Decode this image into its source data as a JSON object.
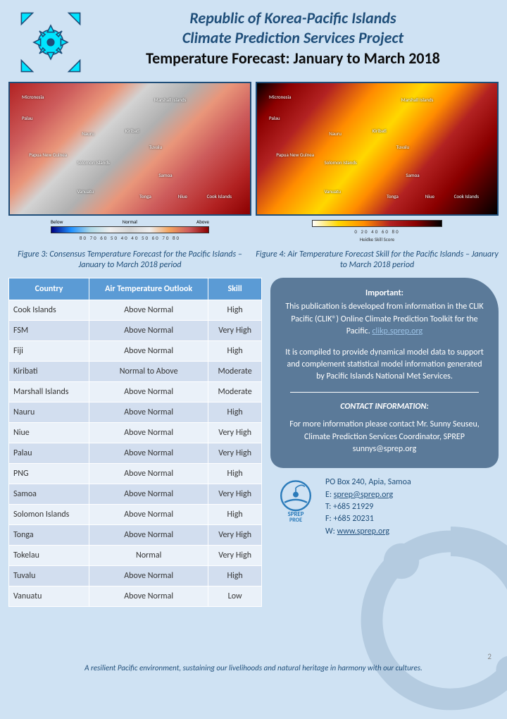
{
  "colors": {
    "page_bg": "#cfe2f3",
    "accent": "#1f4e79",
    "table_header_bg": "#5b9bd5",
    "table_row_odd": "#eaf1f9",
    "table_row_even": "#d2deef",
    "info_box_bg": "#5b7a99",
    "link": "#9cc3e6",
    "logo_cyan": "#00e5ff"
  },
  "header": {
    "title_line1": "Republic of Korea-Pacific Islands",
    "title_line2": "Climate Prediction Services Project",
    "subtitle": "Temperature Forecast: January to March 2018"
  },
  "maps": {
    "left": {
      "type": "heatmap",
      "description": "Consensus temperature forecast probability map",
      "labels": [
        "Micronesia",
        "Palau",
        "Marshall Islands",
        "Kiribati",
        "Nauru",
        "Papua New Guinea",
        "Solomon Islands",
        "Tuvalu",
        "Vanuatu",
        "Samoa",
        "Tonga",
        "Niue",
        "Cook Islands"
      ],
      "legend": {
        "title_below": "Below",
        "title_normal": "Normal",
        "title_above": "Above",
        "ticks": "80 70 60 50 40   40 50 60 70 80",
        "gradient": [
          "#000080",
          "#1e90ff",
          "#add8e6",
          "#eeeeee",
          "#d3d3d3",
          "#eeeeee",
          "#f4a460",
          "#cd5c5c",
          "#8b0000"
        ]
      }
    },
    "right": {
      "type": "heatmap",
      "description": "Air temperature forecast Heidke skill score map",
      "labels": [
        "Micronesia",
        "Palau",
        "Marshall Islands",
        "Kiribati",
        "Nauru",
        "Papua New Guinea",
        "Solomon Islands",
        "Tuvalu",
        "Vanuatu",
        "Samoa",
        "Tonga",
        "Niue",
        "Cook Islands"
      ],
      "legend": {
        "title": "Heidke Skill Score",
        "ticks": "0  20  40  60  80",
        "gradient": [
          "#ffffff",
          "#ffd700",
          "#ff8c00",
          "#b22222",
          "#8b0000",
          "#000000"
        ]
      }
    }
  },
  "captions": {
    "left": "Figure 3: Consensus Temperature Forecast for the Pacific Islands – January to March 2018 period",
    "right": "Figure 4: Air Temperature Forecast Skill for the Pacific Islands – January to March 2018 period"
  },
  "table": {
    "columns": [
      "Country",
      "Air Temperature Outlook",
      "Skill"
    ],
    "rows": [
      [
        "Cook Islands",
        "Above Normal",
        "High"
      ],
      [
        "FSM",
        "Above Normal",
        "Very High"
      ],
      [
        "Fiji",
        "Above Normal",
        "High"
      ],
      [
        "Kiribati",
        "Normal to Above",
        "Moderate"
      ],
      [
        "Marshall Islands",
        "Above Normal",
        "Moderate"
      ],
      [
        "Nauru",
        "Above Normal",
        "High"
      ],
      [
        "Niue",
        "Above Normal",
        "Very High"
      ],
      [
        "Palau",
        "Above Normal",
        "Very High"
      ],
      [
        "PNG",
        "Above Normal",
        "High"
      ],
      [
        "Samoa",
        "Above Normal",
        "Very High"
      ],
      [
        "Solomon Islands",
        "Above Normal",
        "High"
      ],
      [
        "Tonga",
        "Above Normal",
        "Very High"
      ],
      [
        "Tokelau",
        "Normal",
        "Very High"
      ],
      [
        "Tuvalu",
        "Above Normal",
        "High"
      ],
      [
        "Vanuatu",
        "Above Normal",
        "Low"
      ]
    ]
  },
  "info_box": {
    "heading": "Important:",
    "para1a": "This publication is developed from information in the CLIK Pacific (CLIK®) Online Climate Prediction Toolkit for the Pacific. ",
    "link1": "clikp.sprep.org",
    "para2": "It is compiled to provide dynamical model data to support and complement statistical model information generated by Pacific Islands National Met Services.",
    "contact_title": "CONTACT INFORMATION:",
    "contact_body": "For more information please contact Mr. Sunny Seuseu, Climate Prediction Services Coordinator, SPREP",
    "contact_email": "sunnys@sprep.org"
  },
  "org_logo": {
    "line1": "SPREP",
    "line2": "PROE"
  },
  "contact": {
    "addr": "PO Box 240, Apia, Samoa",
    "e_label": "E: ",
    "email": "sprep@sprep.org",
    "t": "T: +685 21929",
    "f": "F: +685 20231",
    "w_label": "W: ",
    "web": "www.sprep.org"
  },
  "footer": "A resilient Pacific environment, sustaining our livelihoods and natural heritage in harmony with our cultures.",
  "page_number": "2"
}
